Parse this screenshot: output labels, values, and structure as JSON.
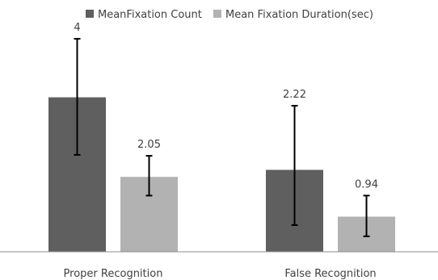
{
  "chart_data": {
    "type": "bar",
    "categories": [
      "Proper Recognition",
      "False Recognition"
    ],
    "series": [
      {
        "name": "MeanFixation Count",
        "color": "#5f5f5f",
        "values": [
          3.3,
          1.75
        ],
        "value_labels": [
          "",
          ""
        ],
        "error_low": [
          2.07,
          0.57
        ],
        "error_high": [
          4.55,
          3.12
        ]
      },
      {
        "name": "Mean Fixation Duration(sec)",
        "color": "#b2b2b2",
        "values": [
          1.6,
          0.75
        ],
        "value_labels": [
          "",
          ""
        ],
        "error_low": [
          1.2,
          0.33
        ],
        "error_high": [
          2.05,
          1.2
        ]
      }
    ],
    "error_labels": [
      [
        "4",
        "2.05"
      ],
      [
        "2.22",
        "0.94"
      ]
    ],
    "ylim": [
      0,
      5
    ],
    "grid": false,
    "legend_position": "top"
  }
}
